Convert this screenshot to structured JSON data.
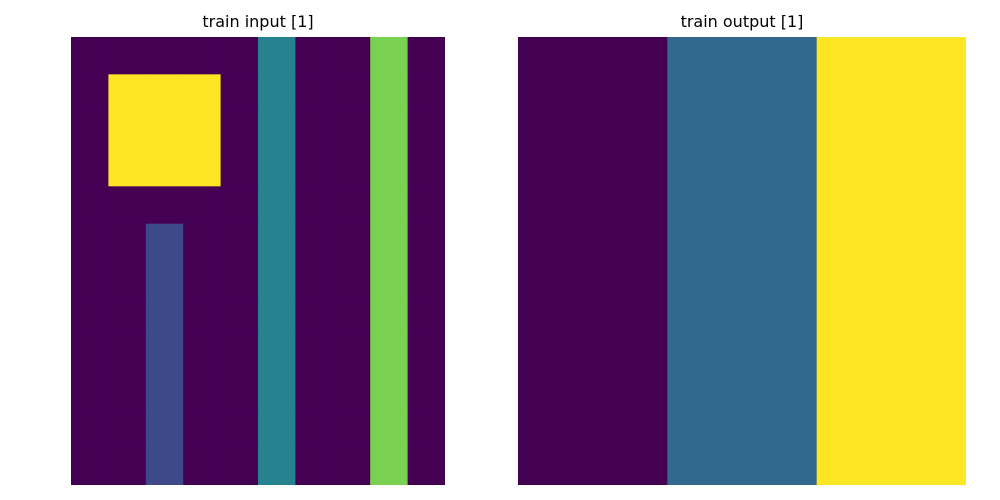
{
  "colors": {
    "0": "#440154",
    "1": "#3e4989",
    "2": "#31688e",
    "3": "#26828e",
    "4": "#7ad151",
    "5": "#fde725"
  },
  "chart_data": [
    {
      "type": "heatmap",
      "title": "train input [1]",
      "rows": 12,
      "cols": 10,
      "grid": [
        [
          0,
          0,
          0,
          0,
          0,
          3,
          0,
          0,
          4,
          0
        ],
        [
          0,
          5,
          5,
          5,
          0,
          3,
          0,
          0,
          4,
          0
        ],
        [
          0,
          5,
          5,
          5,
          0,
          3,
          0,
          0,
          4,
          0
        ],
        [
          0,
          5,
          5,
          5,
          0,
          3,
          0,
          0,
          4,
          0
        ],
        [
          0,
          0,
          0,
          0,
          0,
          3,
          0,
          0,
          4,
          0
        ],
        [
          0,
          0,
          1,
          0,
          0,
          3,
          0,
          0,
          4,
          0
        ],
        [
          0,
          0,
          1,
          0,
          0,
          3,
          0,
          0,
          4,
          0
        ],
        [
          0,
          0,
          1,
          0,
          0,
          3,
          0,
          0,
          4,
          0
        ],
        [
          0,
          0,
          1,
          0,
          0,
          3,
          0,
          0,
          4,
          0
        ],
        [
          0,
          0,
          1,
          0,
          0,
          3,
          0,
          0,
          4,
          0
        ],
        [
          0,
          0,
          1,
          0,
          0,
          3,
          0,
          0,
          4,
          0
        ],
        [
          0,
          0,
          1,
          0,
          0,
          3,
          0,
          0,
          4,
          0
        ]
      ]
    },
    {
      "type": "heatmap",
      "title": "train output [1]",
      "rows": 1,
      "cols": 3,
      "grid": [
        [
          0,
          2,
          5
        ]
      ]
    }
  ]
}
